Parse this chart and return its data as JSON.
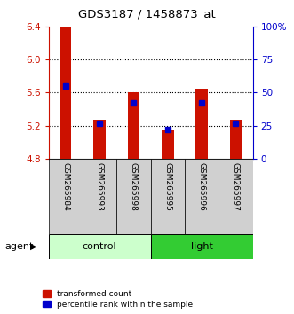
{
  "title": "GDS3187 / 1458873_at",
  "samples": [
    "GSM265984",
    "GSM265993",
    "GSM265998",
    "GSM265995",
    "GSM265996",
    "GSM265997"
  ],
  "transformed_counts": [
    6.39,
    5.27,
    5.6,
    5.15,
    5.65,
    5.27
  ],
  "percentile_ranks": [
    55,
    27,
    42,
    22,
    42,
    27
  ],
  "ylim_left": [
    4.8,
    6.4
  ],
  "ylim_right": [
    0,
    100
  ],
  "yticks_left": [
    4.8,
    5.2,
    5.6,
    6.0,
    6.4
  ],
  "yticks_right": [
    0,
    25,
    50,
    75,
    100
  ],
  "ytick_right_labels": [
    "0",
    "25",
    "50",
    "75",
    "100%"
  ],
  "bar_color": "#cc1100",
  "dot_color": "#0000cc",
  "bar_bottom": 4.8,
  "group_colors": {
    "control": "#ccffcc",
    "light": "#33cc33"
  },
  "left_axis_color": "#cc1100",
  "right_axis_color": "#0000cc",
  "legend_items": [
    "transformed count",
    "percentile rank within the sample"
  ],
  "agent_label": "agent",
  "gridline_values": [
    6.0,
    5.6,
    5.2
  ],
  "bar_width": 0.35
}
